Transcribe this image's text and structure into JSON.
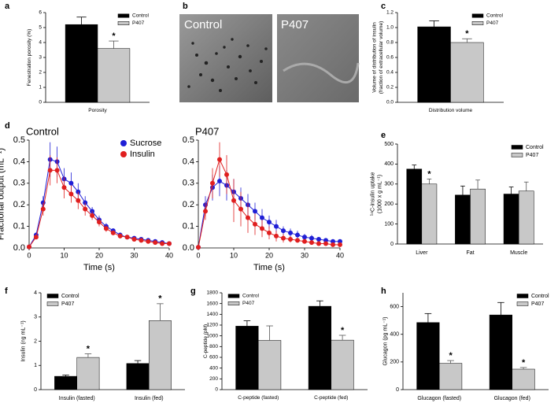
{
  "chart_data": [
    {
      "panel": "a",
      "type": "bar",
      "ylabel": [
        "Fenestration porosity (%)"
      ],
      "xlabel": null,
      "categories": [
        "Porosity"
      ],
      "series": [
        {
          "name": "Control",
          "color": "#000000",
          "values": [
            5.2
          ],
          "errors": [
            0.5
          ],
          "significance": [
            null
          ]
        },
        {
          "name": "P407",
          "color": "#c8c8c8",
          "values": [
            3.6
          ],
          "errors": [
            0.5
          ],
          "significance": [
            "*"
          ]
        }
      ],
      "ylim": [
        0,
        6
      ],
      "yticks": [
        0,
        1,
        2,
        3,
        4,
        5,
        6
      ],
      "legend": "top-right"
    },
    {
      "panel": "c",
      "type": "bar",
      "ylabel": [
        "Volume of distribution of insulin",
        "(fraction of extracellular volume)"
      ],
      "xlabel": null,
      "categories": [
        "Distribution volume"
      ],
      "series": [
        {
          "name": "Control",
          "color": "#000000",
          "values": [
            1.01
          ],
          "errors": [
            0.08
          ],
          "significance": [
            null
          ]
        },
        {
          "name": "P407",
          "color": "#c8c8c8",
          "values": [
            0.8
          ],
          "errors": [
            0.05
          ],
          "significance": [
            "*"
          ]
        }
      ],
      "ylim": [
        0,
        1.2
      ],
      "yticks": [
        {
          "value": 0,
          "label": "0.0"
        },
        0.2,
        0.4,
        0.6,
        0.8,
        {
          "value": 1,
          "label": "1.0"
        },
        1.2
      ],
      "legend": "top-right"
    },
    {
      "panel": "d",
      "type": "line",
      "title": "Control",
      "ylabel": [
        "Fractional output (mL⁻¹)"
      ],
      "xlabel": "Time (s)",
      "x": [
        0,
        2,
        4,
        6,
        8,
        10,
        12,
        14,
        16,
        18,
        20,
        22,
        24,
        26,
        28,
        30,
        32,
        34,
        36,
        38,
        40
      ],
      "series": [
        {
          "name": "Sucrose",
          "color": "#1f1fd6",
          "values": [
            0.005,
            0.06,
            0.21,
            0.41,
            0.4,
            0.32,
            0.3,
            0.26,
            0.21,
            0.17,
            0.13,
            0.1,
            0.08,
            0.06,
            0.05,
            0.045,
            0.04,
            0.035,
            0.03,
            0.025,
            0.02
          ],
          "errors": [
            0.003,
            0.01,
            0.03,
            0.08,
            0.07,
            0.05,
            0.05,
            0.04,
            0.03,
            0.02,
            0.02,
            0.015,
            0.01,
            0.01,
            0.008,
            0.007,
            0.006,
            0.005,
            0.005,
            0.004,
            0.004
          ]
        },
        {
          "name": "Insulin",
          "color": "#e01f1f",
          "values": [
            0.005,
            0.05,
            0.18,
            0.36,
            0.36,
            0.28,
            0.25,
            0.22,
            0.18,
            0.15,
            0.12,
            0.09,
            0.07,
            0.055,
            0.05,
            0.04,
            0.035,
            0.03,
            0.025,
            0.02,
            0.02
          ],
          "errors": [
            0.003,
            0.01,
            0.03,
            0.07,
            0.06,
            0.05,
            0.04,
            0.04,
            0.03,
            0.02,
            0.02,
            0.015,
            0.01,
            0.01,
            0.008,
            0.007,
            0.006,
            0.005,
            0.005,
            0.004,
            0.004
          ]
        }
      ],
      "xlim": [
        0,
        40
      ],
      "xticks": [
        0,
        10,
        20,
        30,
        40
      ],
      "ylim": [
        0,
        0.5
      ],
      "yticks": [
        {
          "value": 0,
          "label": "0.0"
        },
        0.1,
        0.2,
        0.3,
        0.4,
        0.5
      ],
      "legend": "top-right"
    },
    {
      "type": "line",
      "title": "P407",
      "xlabel": "Time (s)",
      "x": [
        0,
        2,
        4,
        6,
        8,
        10,
        12,
        14,
        16,
        18,
        20,
        22,
        24,
        26,
        28,
        30,
        32,
        34,
        36,
        38,
        40
      ],
      "series": [
        {
          "name": "Sucrose",
          "color": "#1f1fd6",
          "values": [
            0.003,
            0.2,
            0.28,
            0.31,
            0.29,
            0.26,
            0.23,
            0.2,
            0.17,
            0.14,
            0.12,
            0.1,
            0.08,
            0.07,
            0.06,
            0.05,
            0.045,
            0.04,
            0.035,
            0.03,
            0.03
          ],
          "errors": [
            0.003,
            0.04,
            0.06,
            0.07,
            0.07,
            0.06,
            0.05,
            0.05,
            0.04,
            0.04,
            0.03,
            0.03,
            0.02,
            0.02,
            0.02,
            0.015,
            0.015,
            0.01,
            0.01,
            0.01,
            0.01
          ]
        },
        {
          "name": "Insulin",
          "color": "#e01f1f",
          "values": [
            0.003,
            0.17,
            0.3,
            0.41,
            0.34,
            0.22,
            0.18,
            0.14,
            0.11,
            0.09,
            0.07,
            0.055,
            0.045,
            0.04,
            0.035,
            0.03,
            0.025,
            0.02,
            0.02,
            0.015,
            0.015
          ],
          "errors": [
            0.003,
            0.04,
            0.07,
            0.08,
            0.09,
            0.1,
            0.08,
            0.07,
            0.05,
            0.04,
            0.03,
            0.025,
            0.02,
            0.015,
            0.01,
            0.01,
            0.01,
            0.008,
            0.006,
            0.005,
            0.005
          ]
        }
      ],
      "xlim": [
        0,
        40
      ],
      "xticks": [
        0,
        10,
        20,
        30,
        40
      ],
      "ylim": [
        0,
        0.5
      ],
      "yticks": [
        {
          "value": 0,
          "label": "0.0"
        },
        0.1,
        0.2,
        0.3,
        0.4,
        0.5
      ]
    },
    {
      "panel": "e",
      "type": "bar",
      "ylabel": [
        "¹⁴C-insulin uptake",
        "(1000 x g mL⁻¹)"
      ],
      "xlabel": null,
      "categories": [
        "Liver",
        "Fat",
        "Muscle"
      ],
      "series": [
        {
          "name": "Control",
          "color": "#000000",
          "values": [
            375,
            245,
            250
          ],
          "errors": [
            20,
            45,
            35
          ],
          "significance": [
            null,
            null,
            null
          ]
        },
        {
          "name": "P407",
          "color": "#c8c8c8",
          "values": [
            300,
            275,
            265
          ],
          "errors": [
            25,
            45,
            45
          ],
          "significance": [
            "*",
            null,
            null
          ]
        }
      ],
      "ylim": [
        0,
        500
      ],
      "yticks": [
        0,
        100,
        200,
        300,
        400,
        500
      ],
      "legend": "top-right"
    },
    {
      "panel": "f",
      "type": "bar",
      "ylabel": [
        "Insulin (ng mL⁻¹)"
      ],
      "xlabel": null,
      "categories": [
        "Insulin (fasted)",
        "Insulin (fed)"
      ],
      "series": [
        {
          "name": "Control",
          "color": "#000000",
          "values": [
            0.55,
            1.08
          ],
          "errors": [
            0.05,
            0.12
          ],
          "significance": [
            null,
            null
          ]
        },
        {
          "name": "P407",
          "color": "#c8c8c8",
          "values": [
            1.33,
            2.85
          ],
          "errors": [
            0.15,
            0.7
          ],
          "significance": [
            "*",
            "*"
          ]
        }
      ],
      "ylim": [
        0,
        4
      ],
      "yticks": [
        0,
        1,
        2,
        3,
        4
      ],
      "legend": "top-left"
    },
    {
      "panel": "g",
      "type": "bar",
      "ylabel": [
        "C-peptide (pM)"
      ],
      "xlabel": null,
      "categories": [
        "C-peptide (fasted)",
        "C-peptide (fed)"
      ],
      "series": [
        {
          "name": "Control",
          "color": "#000000",
          "values": [
            1180,
            1550
          ],
          "errors": [
            100,
            100
          ],
          "significance": [
            null,
            null
          ]
        },
        {
          "name": "P407",
          "color": "#c8c8c8",
          "values": [
            915,
            920
          ],
          "errors": [
            270,
            90
          ],
          "significance": [
            null,
            "*"
          ]
        }
      ],
      "ylim": [
        0,
        1800
      ],
      "yticks": [
        0,
        200,
        400,
        600,
        800,
        1000,
        1200,
        1400,
        1600,
        1800
      ],
      "legend": "top-left"
    },
    {
      "panel": "h",
      "type": "bar",
      "ylabel": [
        "Glucagon (pg mL⁻¹)"
      ],
      "xlabel": null,
      "categories": [
        "Glucagon (fasted)",
        "Glucagon (fed)"
      ],
      "series": [
        {
          "name": "Control",
          "color": "#000000",
          "values": [
            485,
            540
          ],
          "errors": [
            65,
            90
          ],
          "significance": [
            null,
            null
          ]
        },
        {
          "name": "P407",
          "color": "#c8c8c8",
          "values": [
            190,
            148
          ],
          "errors": [
            20,
            12
          ],
          "significance": [
            "*",
            "*"
          ]
        }
      ],
      "ylim": [
        0,
        700
      ],
      "yticks": [
        0,
        200,
        400,
        600
      ],
      "legend": "top-right"
    }
  ],
  "micrographs": {
    "panel": "b",
    "images": [
      {
        "label": "Control"
      },
      {
        "label": "P407"
      }
    ]
  }
}
